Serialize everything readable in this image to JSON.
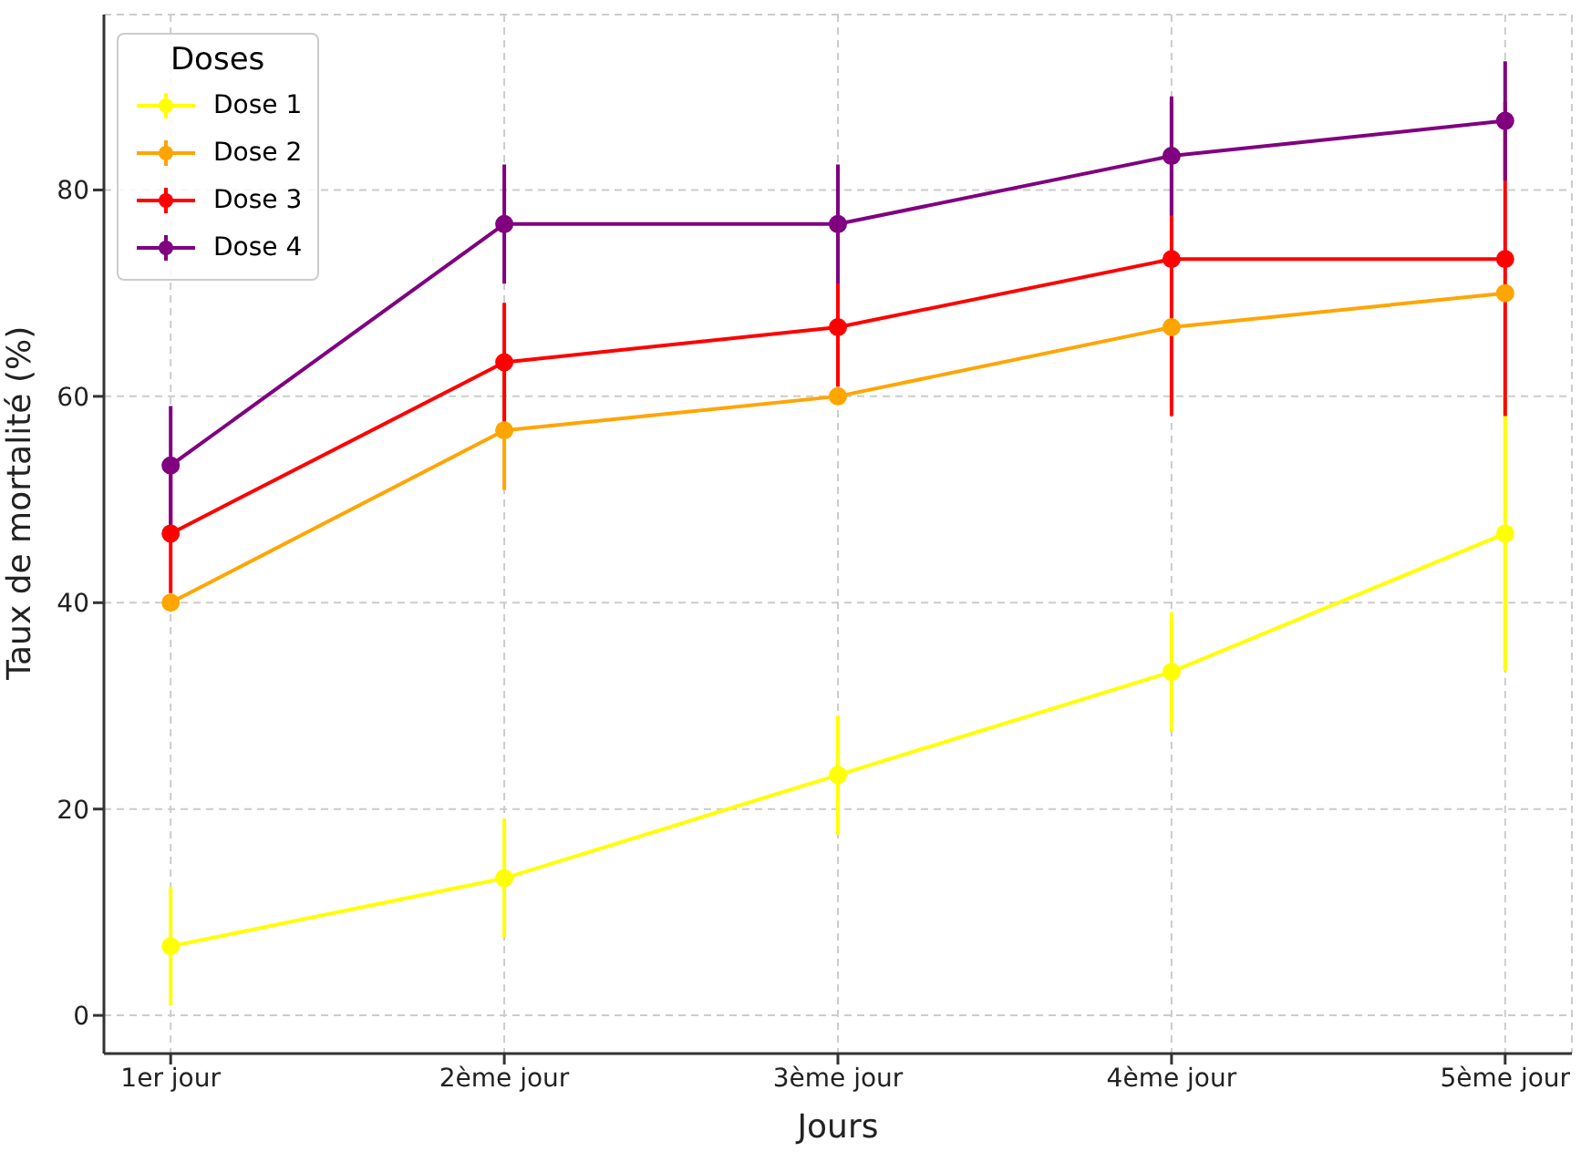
{
  "chart_data": {
    "type": "line",
    "xlabel": "Jours",
    "ylabel": "Taux de mortalité (%)",
    "legend_title": "Doses",
    "categories": [
      "1er jour",
      "2ème jour",
      "3ème jour",
      "4ème jour",
      "5ème jour"
    ],
    "series": [
      {
        "name": "Dose 1",
        "color": "#ffff00",
        "values": [
          6.7,
          13.3,
          23.3,
          33.3,
          46.7
        ],
        "errors": [
          5.77,
          5.77,
          5.77,
          5.77,
          13.3
        ]
      },
      {
        "name": "Dose 2",
        "color": "#ffa500",
        "values": [
          40,
          56.7,
          60,
          66.7,
          70
        ],
        "errors": [
          null,
          5.77,
          null,
          null,
          null
        ]
      },
      {
        "name": "Dose 3",
        "color": "#ff0000",
        "values": [
          46.7,
          63.3,
          66.7,
          73.3,
          73.3
        ],
        "errors": [
          5.77,
          5.77,
          5.77,
          15.2,
          15.2
        ]
      },
      {
        "name": "Dose 4",
        "color": "#800080",
        "values": [
          53.3,
          76.7,
          76.7,
          83.3,
          86.7
        ],
        "errors": [
          5.77,
          5.77,
          5.77,
          5.77,
          5.77
        ]
      }
    ],
    "ylim": [
      -3.7,
      97
    ],
    "yticks": [
      0,
      20,
      40,
      60,
      80
    ],
    "grid": true,
    "legend": "top left",
    "marker": "circle",
    "line_style": "solid"
  }
}
